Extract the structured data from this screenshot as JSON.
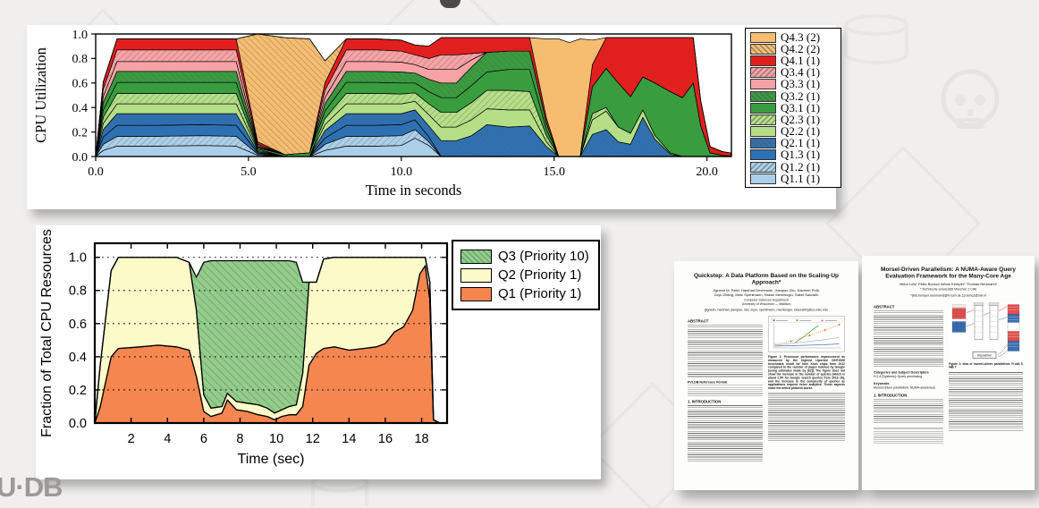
{
  "slide": {
    "logo_text": "U·DB",
    "background_color": "#f0efee"
  },
  "chart_data": [
    {
      "type": "area",
      "stacked": true,
      "xlabel": "Time in seconds",
      "ylabel": "CPU Utilization",
      "xlim": [
        0,
        20.8
      ],
      "ylim": [
        0,
        1.0
      ],
      "xticks": [
        0,
        5,
        10,
        15,
        20
      ],
      "xtick_labels": [
        "0.0",
        "5.0",
        "10.0",
        "15.0",
        "20.0"
      ],
      "yticks": [
        0,
        0.2,
        0.4,
        0.6,
        0.8,
        1.0
      ],
      "ytick_labels": [
        "0.0",
        "0.2",
        "0.4",
        "0.6",
        "0.8",
        "1.0"
      ],
      "grid": "none",
      "legend_position": "right",
      "legend_reverse": true,
      "x": [
        0,
        0.25,
        0.7,
        2,
        3.5,
        4.6,
        5.3,
        6.2,
        7.0,
        7.5,
        8.2,
        9.2,
        10.0,
        10.45,
        10.9,
        11.3,
        11.8,
        12.3,
        12.8,
        13.5,
        14.2,
        14.75,
        15.15,
        15.5,
        15.85,
        16.25,
        16.7,
        17.1,
        17.5,
        17.9,
        18.3,
        18.8,
        19.2,
        19.55,
        19.8,
        20.1,
        20.5,
        21.0
      ],
      "series": [
        {
          "name": "Q1.1 (1)",
          "color": "#abcfe9",
          "hatch": null,
          "values": [
            0,
            0.05,
            0.085,
            0.085,
            0.09,
            0.085,
            0.01,
            0,
            0,
            0.05,
            0.085,
            0.085,
            0.09,
            0.15,
            0.09,
            0,
            0,
            0,
            0,
            0,
            0,
            0,
            0,
            0,
            0,
            0,
            0,
            0,
            0,
            0,
            0,
            0,
            0,
            0,
            0,
            0,
            0,
            0
          ]
        },
        {
          "name": "Q1.2 (1)",
          "color": "#abcfe9",
          "hatch": "fwd",
          "values": [
            0,
            0.05,
            0.08,
            0.08,
            0.08,
            0.08,
            0.01,
            0,
            0,
            0.05,
            0.08,
            0.08,
            0.08,
            0.07,
            0.03,
            0,
            0,
            0,
            0,
            0,
            0,
            0,
            0,
            0,
            0,
            0,
            0,
            0,
            0,
            0,
            0,
            0,
            0,
            0,
            0,
            0,
            0,
            0
          ]
        },
        {
          "name": "Q1.3 (1)",
          "color": "#2e71b3",
          "hatch": null,
          "values": [
            0,
            0.06,
            0.09,
            0.09,
            0.09,
            0.09,
            0.01,
            0,
            0,
            0.05,
            0.09,
            0.09,
            0.09,
            0.08,
            0.04,
            0,
            0,
            0,
            0,
            0,
            0,
            0,
            0,
            0,
            0,
            0,
            0,
            0,
            0,
            0,
            0,
            0,
            0,
            0,
            0,
            0,
            0,
            0
          ]
        },
        {
          "name": "Q2.1 (1)",
          "color": "#2e71b3",
          "hatch": "back",
          "values": [
            0,
            0.06,
            0.095,
            0.095,
            0.09,
            0.095,
            0.01,
            0,
            0,
            0.06,
            0.095,
            0.095,
            0.09,
            0.08,
            0.09,
            0.13,
            0.13,
            0.17,
            0.26,
            0.24,
            0.25,
            0.08,
            0,
            0,
            0,
            0.18,
            0.22,
            0.12,
            0.1,
            0.32,
            0.14,
            0.02,
            0,
            0,
            0,
            0,
            0,
            0
          ]
        },
        {
          "name": "Q2.2 (1)",
          "color": "#b5df87",
          "hatch": null,
          "values": [
            0,
            0.05,
            0.08,
            0.08,
            0.08,
            0.08,
            0.01,
            0,
            0,
            0.05,
            0.08,
            0.08,
            0.08,
            0.07,
            0.09,
            0.11,
            0.11,
            0.13,
            0.13,
            0.14,
            0.13,
            0.04,
            0,
            0,
            0,
            0.12,
            0.15,
            0.12,
            0.09,
            0.06,
            0.03,
            0.01,
            0,
            0,
            0,
            0,
            0,
            0
          ]
        },
        {
          "name": "Q2.3 (1)",
          "color": "#b5df87",
          "hatch": "fwd",
          "values": [
            0,
            0.05,
            0.085,
            0.085,
            0.085,
            0.085,
            0.01,
            0,
            0,
            0.05,
            0.085,
            0.085,
            0.08,
            0.07,
            0.09,
            0.12,
            0.12,
            0.14,
            0.15,
            0.16,
            0.15,
            0.05,
            0,
            0,
            0,
            0.05,
            0.03,
            0,
            0,
            0,
            0,
            0,
            0,
            0,
            0,
            0,
            0,
            0
          ]
        },
        {
          "name": "Q3.1 (1)",
          "color": "#399c3f",
          "hatch": null,
          "values": [
            0,
            0.06,
            0.09,
            0.09,
            0.09,
            0.09,
            0.01,
            0.015,
            0.03,
            0.06,
            0.09,
            0.09,
            0.09,
            0.08,
            0.1,
            0.12,
            0.12,
            0.14,
            0.15,
            0.17,
            0.18,
            0.05,
            0,
            0,
            0,
            0.22,
            0.32,
            0.36,
            0.3,
            0.27,
            0.43,
            0.5,
            0.48,
            0.6,
            0.25,
            0.03,
            0.01,
            0
          ]
        },
        {
          "name": "Q3.2 (1)",
          "color": "#399c3f",
          "hatch": "back",
          "values": [
            0,
            0.06,
            0.09,
            0.09,
            0.09,
            0.09,
            0.01,
            0,
            0,
            0.06,
            0.09,
            0.09,
            0.09,
            0.08,
            0.1,
            0.12,
            0.12,
            0.15,
            0.16,
            0.15,
            0.15,
            0.05,
            0,
            0,
            0,
            0,
            0,
            0,
            0,
            0,
            0,
            0,
            0,
            0,
            0,
            0,
            0,
            0
          ]
        },
        {
          "name": "Q3.3 (1)",
          "color": "#f7a2a5",
          "hatch": null,
          "values": [
            0,
            0.05,
            0.08,
            0.08,
            0.08,
            0.08,
            0.01,
            0,
            0,
            0.05,
            0.08,
            0.08,
            0.08,
            0.07,
            0.08,
            0.11,
            0.11,
            0.06,
            0,
            0,
            0,
            0,
            0,
            0,
            0,
            0,
            0,
            0,
            0,
            0,
            0,
            0,
            0,
            0,
            0,
            0,
            0,
            0
          ]
        },
        {
          "name": "Q3.4 (1)",
          "color": "#f7a2a5",
          "hatch": "fwd",
          "values": [
            0,
            0.06,
            0.095,
            0.095,
            0.095,
            0.095,
            0.01,
            0,
            0,
            0.06,
            0.095,
            0.095,
            0.09,
            0.08,
            0.09,
            0.12,
            0.12,
            0.05,
            0,
            0,
            0,
            0,
            0,
            0,
            0,
            0,
            0,
            0,
            0,
            0,
            0,
            0,
            0,
            0,
            0,
            0,
            0,
            0
          ]
        },
        {
          "name": "Q4.1 (1)",
          "color": "#e11f1f",
          "hatch": null,
          "values": [
            0,
            0.06,
            0.09,
            0.09,
            0.09,
            0.09,
            0.02,
            0,
            0,
            0.06,
            0.09,
            0.09,
            0.09,
            0.08,
            0.1,
            0.14,
            0.14,
            0.13,
            0.12,
            0.11,
            0.11,
            0.04,
            0,
            0,
            0,
            0.18,
            0.25,
            0.37,
            0.48,
            0.32,
            0.37,
            0.44,
            0.49,
            0.37,
            0.2,
            0.05,
            0.03,
            0.02
          ]
        },
        {
          "name": "Q4.2 (2)",
          "color": "#f6bd70",
          "hatch": "back",
          "values": [
            0,
            0,
            0,
            0,
            0,
            0,
            0.88,
            0.955,
            0.93,
            0.18,
            0,
            0,
            0,
            0,
            0,
            0,
            0,
            0,
            0,
            0,
            0,
            0,
            0,
            0,
            0,
            0,
            0,
            0,
            0,
            0,
            0,
            0,
            0,
            0,
            0,
            0,
            0,
            0
          ]
        },
        {
          "name": "Q4.3 (2)",
          "color": "#f6bd70",
          "hatch": null,
          "values": [
            0,
            0,
            0,
            0,
            0,
            0,
            0,
            0,
            0,
            0,
            0,
            0,
            0,
            0,
            0,
            0,
            0,
            0,
            0,
            0,
            0,
            0.65,
            0.96,
            0.93,
            0.96,
            0.2,
            0,
            0,
            0,
            0,
            0,
            0,
            0,
            0,
            0,
            0,
            0,
            0
          ]
        }
      ]
    },
    {
      "type": "area",
      "stacked": true,
      "xlabel": "Time (sec)",
      "ylabel": "Fraction of Total CPU Resources",
      "xlim": [
        0,
        19.4
      ],
      "ylim": [
        0,
        1.085
      ],
      "xticks": [
        2,
        4,
        6,
        8,
        10,
        12,
        14,
        16,
        18
      ],
      "xtick_labels": [
        "2",
        "4",
        "6",
        "8",
        "10",
        "12",
        "14",
        "16",
        "18"
      ],
      "yticks": [
        0,
        0.2,
        0.4,
        0.6,
        0.8,
        1.0
      ],
      "ytick_labels": [
        "0.0",
        "0.2",
        "0.4",
        "0.6",
        "0.8",
        "1.0"
      ],
      "grid": "h-dashed",
      "legend_position": "right",
      "legend_reverse": true,
      "x": [
        0,
        0.3,
        0.9,
        1.3,
        2.5,
        3.5,
        4.5,
        5.2,
        5.6,
        6.0,
        6.4,
        7.0,
        7.3,
        7.8,
        8.4,
        9.0,
        9.5,
        9.9,
        10.3,
        10.7,
        11.1,
        11.45,
        11.8,
        12.2,
        12.6,
        13.2,
        14.0,
        14.8,
        15.5,
        16.0,
        16.5,
        17.0,
        17.5,
        17.9,
        18.2,
        18.45,
        18.65,
        19.0
      ],
      "series": [
        {
          "name": "Q1 (Priority 1)",
          "color": "#f58650",
          "hatch": null,
          "values": [
            0,
            0.1,
            0.4,
            0.45,
            0.46,
            0.47,
            0.46,
            0.44,
            0.28,
            0.07,
            0.04,
            0.06,
            0.14,
            0.08,
            0.07,
            0.05,
            0.04,
            0.02,
            0.04,
            0.05,
            0.05,
            0.1,
            0.35,
            0.42,
            0.45,
            0.46,
            0.44,
            0.45,
            0.46,
            0.48,
            0.55,
            0.58,
            0.68,
            0.9,
            0.95,
            0.75,
            0.02,
            0
          ]
        },
        {
          "name": "Q2 (Priority 1)",
          "color": "#fbfbca",
          "hatch": null,
          "values": [
            0,
            0.25,
            0.52,
            0.55,
            0.54,
            0.53,
            0.54,
            0.53,
            0.4,
            0.1,
            0.05,
            0.04,
            0.04,
            0.05,
            0.05,
            0.06,
            0.05,
            0.04,
            0.04,
            0.05,
            0.06,
            0.2,
            0.5,
            0.43,
            0.54,
            0.54,
            0.56,
            0.55,
            0.54,
            0.52,
            0.45,
            0.42,
            0.32,
            0.1,
            0.05,
            0.1,
            0,
            0
          ]
        },
        {
          "name": "Q3 (Priority 10)",
          "color": "#94cc8c",
          "hatch": "back",
          "values": [
            0,
            0,
            0,
            0,
            0,
            0,
            0,
            0,
            0.2,
            0.8,
            0.89,
            0.88,
            0.8,
            0.85,
            0.86,
            0.87,
            0.89,
            0.92,
            0.9,
            0.88,
            0.86,
            0.55,
            0,
            0,
            0,
            0,
            0,
            0,
            0,
            0,
            0,
            0,
            0,
            0,
            0,
            0,
            0,
            0
          ]
        }
      ]
    }
  ],
  "papers": [
    {
      "title": "Quickstep: A Data Platform Based on the Scaling-Up Approach*",
      "authors_line1": "Jignesh M. Patel, Harshad Deshmukh, Jianqiao Zhu, Navneet Potti,",
      "authors_line2": "Zuyu Zhang, Marc Spehlmann, Hakan Memisoglu, Saket Saurabh",
      "affiliation_line1": "Computer Sciences Department",
      "affiliation_line2": "University of Wisconsin — Madison",
      "email_line": "{jignesh, harshad, jianqiao, nav, zuyu, spehlmann, memisoglu, ssaurabh}@cs.wisc.edu",
      "section_abstract": "ABSTRACT",
      "section_reference": "PVLDB Reference Format",
      "section_intro": "1.  INTRODUCTION",
      "figure_caption": "Figure 1: Processor performance improvement as measured by the highest reported CINT2006 benchmark result for Intel Xeon chips from 2012 compared to the number of pages indexed by Google (using estimates made by [62]). The figure does not show the increase in the number of queries (which is about 2.5X for Google search queries from 2012–16), and the increase in the complexity of queries as applications request richer analytics. These aspects make the deficit problem worse."
    },
    {
      "title": "Morsel-Driven Parallelism: A NUMA-Aware Query Evaluation Framework for the Many-Core Age",
      "authors_line1": "Viktor Leis*      Peter Boncz‡      Alfons Kemper*      Thomas Neumann*",
      "affiliation_line1": "* Technische Universität München      ‡ CWI",
      "email_line": "*{leis.kemper.neumann}@in.tum.de      ‡p.boncz@cwi.nl",
      "section_abstract": "ABSTRACT",
      "section_categories": "Categories and Subject Descriptors",
      "categories_text": "H.2.4 [Systems]: Query processing",
      "section_keywords": "Keywords",
      "keywords_text": "Morsel-driven parallelism; NUMA-awareness",
      "section_intro": "1.  INTRODUCTION",
      "figure_caption": "Figure 1: Idea of morsel-driven parallelism: R ⋈A S ⋈B T",
      "figure_dispatcher_label": "Dispatcher"
    }
  ]
}
